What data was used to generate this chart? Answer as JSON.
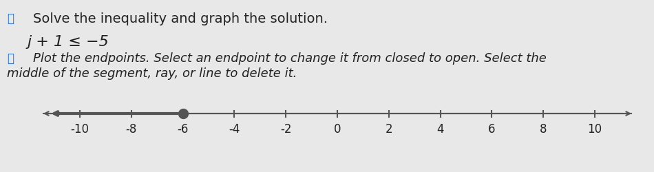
{
  "title_line1": "Solve the inequality and graph the solution.",
  "inequality": "j + 1 ≤ −5",
  "instruction": "Plot the endpoints. Select an endpoint to change it from closed to open. Select the middle of the segment, ray, or line to delete it.",
  "solution_point": -6,
  "solution_closed": true,
  "ray_direction": "left",
  "axis_min": -11.5,
  "axis_max": 11.5,
  "tick_positions": [
    -10,
    -8,
    -6,
    -4,
    -2,
    0,
    2,
    4,
    6,
    8,
    10
  ],
  "tick_labels": [
    "-10",
    "-8",
    "-6",
    "-4",
    "-2",
    "0",
    "2",
    "4",
    "6",
    "8",
    "10"
  ],
  "background_color": "#e8e8e8",
  "line_color": "#555555",
  "ray_color": "#555555",
  "dot_color": "#555555",
  "text_color": "#222222",
  "icon_color": "#1a73e8",
  "fontsize_title": 14,
  "fontsize_instruction": 13,
  "fontsize_ticks": 12,
  "fontsize_inequality": 16
}
